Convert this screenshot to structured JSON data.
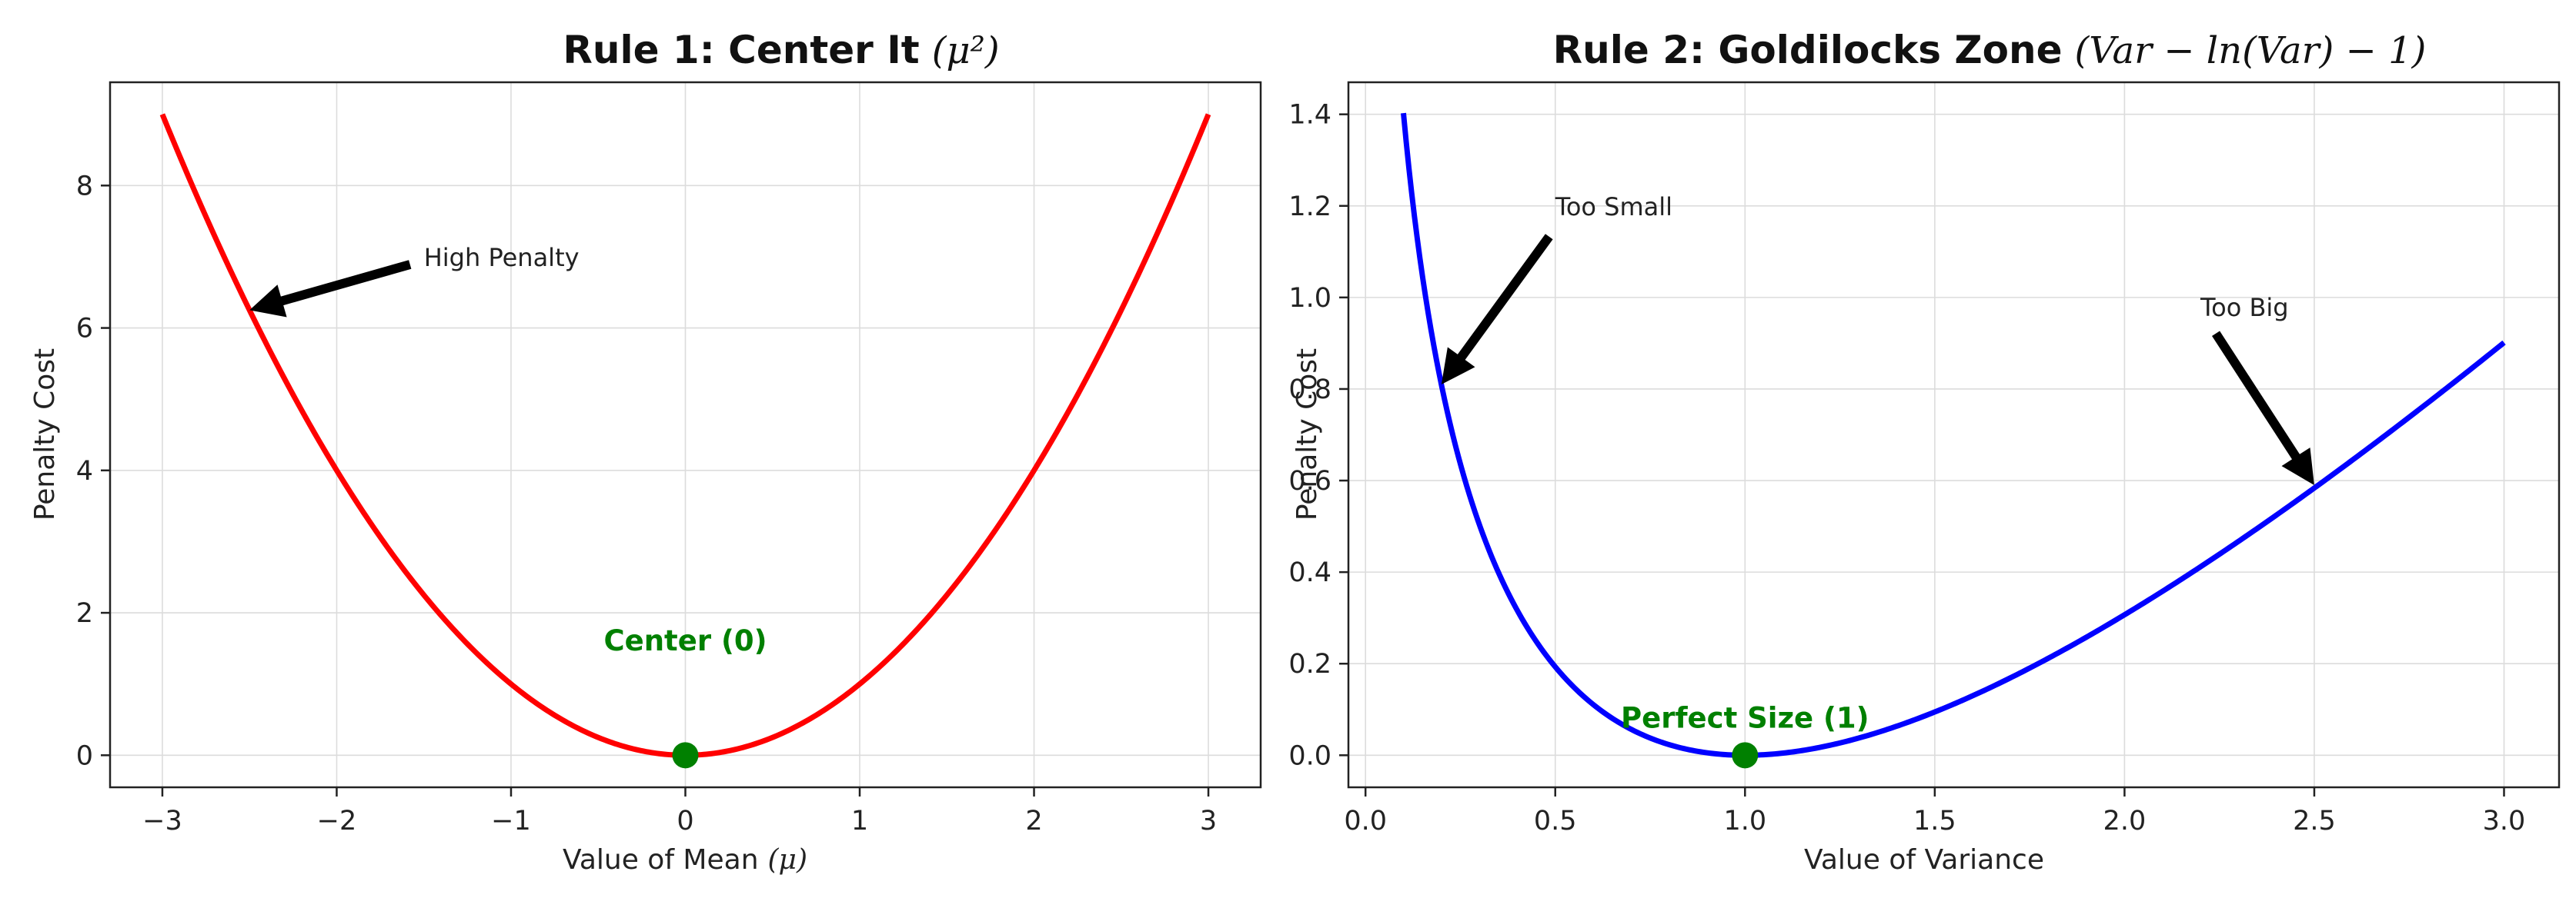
{
  "chart_data": [
    {
      "type": "line",
      "title": "Rule 1: Center It",
      "title_math": "(μ²)",
      "xlabel": "Value of Mean",
      "xlabel_math": "(μ)",
      "ylabel": "Penalty Cost",
      "xlim": [
        -3.3,
        3.3
      ],
      "ylim": [
        -0.45,
        9.45
      ],
      "x_ticks": [
        -3,
        -2,
        -1,
        0,
        1,
        2,
        3
      ],
      "x_tick_labels": [
        "−3",
        "−2",
        "−1",
        "0",
        "1",
        "2",
        "3"
      ],
      "y_ticks": [
        0,
        2,
        4,
        6,
        8
      ],
      "y_tick_labels": [
        "0",
        "2",
        "4",
        "6",
        "8"
      ],
      "grid": true,
      "series": [
        {
          "function": "x^2",
          "x_range": [
            -3,
            3
          ],
          "color": "#ff0000"
        }
      ],
      "marker": {
        "x": 0,
        "y": 0,
        "color": "#008000"
      },
      "annotations": [
        {
          "text": "High Penalty",
          "text_at": [
            -1.5,
            7.0
          ],
          "arrow_to": [
            -2.5,
            6.25
          ]
        },
        {
          "text": "Center (0)",
          "text_at": [
            0,
            1.6
          ],
          "color": "#008000",
          "bold": true
        }
      ]
    },
    {
      "type": "line",
      "title": "Rule 2: Goldilocks Zone",
      "title_math": "(Var − ln(Var) − 1)",
      "xlabel": "Value of Variance",
      "ylabel": "Penalty Cost",
      "xlim": [
        -0.045,
        3.145
      ],
      "ylim": [
        -0.07,
        1.47
      ],
      "x_ticks": [
        0.0,
        0.5,
        1.0,
        1.5,
        2.0,
        2.5,
        3.0
      ],
      "x_tick_labels": [
        "0.0",
        "0.5",
        "1.0",
        "1.5",
        "2.0",
        "2.5",
        "3.0"
      ],
      "y_ticks": [
        0.0,
        0.2,
        0.4,
        0.6,
        0.8,
        1.0,
        1.2,
        1.4
      ],
      "y_tick_labels": [
        "0.0",
        "0.2",
        "0.4",
        "0.6",
        "0.8",
        "1.0",
        "1.2",
        "1.4"
      ],
      "grid": true,
      "series": [
        {
          "function": "x - ln(x) - 1",
          "x_range": [
            0.1,
            3.0
          ],
          "color": "#0000ff"
        }
      ],
      "marker": {
        "x": 1,
        "y": 0,
        "color": "#008000"
      },
      "annotations": [
        {
          "text": "Too Small",
          "text_at": [
            0.5,
            1.2
          ],
          "arrow_to": [
            0.2,
            0.81
          ]
        },
        {
          "text": "Too Big",
          "text_at": [
            2.2,
            0.98
          ],
          "arrow_to": [
            2.5,
            0.59
          ]
        },
        {
          "text": "Perfect Size (1)",
          "text_at": [
            1.0,
            0.08
          ],
          "color": "#008000",
          "bold": true
        }
      ]
    }
  ]
}
